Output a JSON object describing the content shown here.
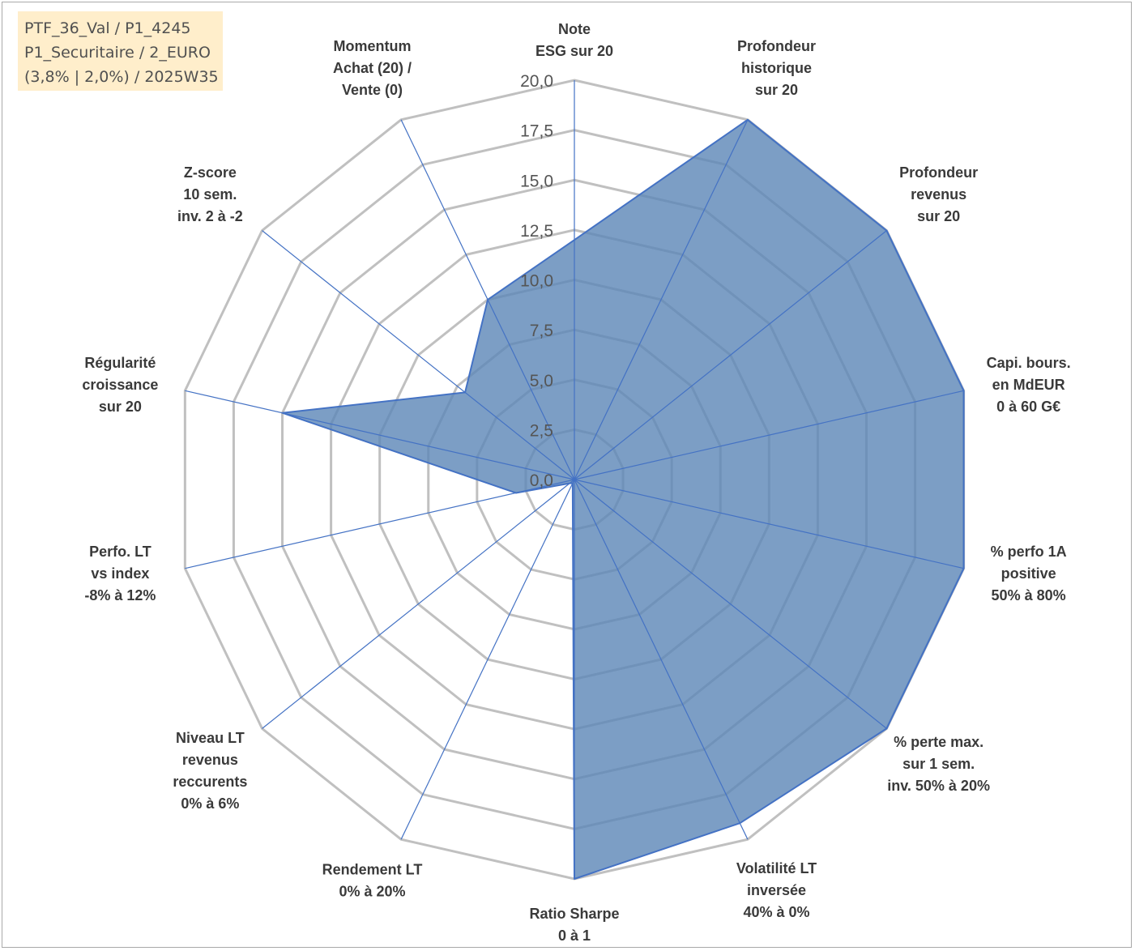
{
  "info_box": {
    "line1": "PTF_36_Val / P1_4245",
    "line2": "P1_Securitaire / 2_EURO",
    "line3": "(3,8% | 2,0%) / 2025W35"
  },
  "colors": {
    "fill": "#5b86b6",
    "series_line": "#4472c4",
    "grid": "#c0c0c0",
    "spoke": "#4472c4"
  },
  "chart_data": {
    "type": "radar",
    "rmin": 0,
    "rmax": 20,
    "ticks": [
      "0,0",
      "2,5",
      "5,0",
      "7,5",
      "10,0",
      "12,5",
      "15,0",
      "17,5",
      "20,0"
    ],
    "axes": [
      [
        "Note",
        "ESG sur 20"
      ],
      [
        "Profondeur",
        "historique",
        "sur 20"
      ],
      [
        "Profondeur",
        "revenus",
        "sur 20"
      ],
      [
        "Capi. bours.",
        "en MdEUR",
        "0 à 60 G€"
      ],
      [
        "% perfo 1A",
        "positive",
        "50% à 80%"
      ],
      [
        "% perte max.",
        "sur 1 sem.",
        "inv. 50% à 20%"
      ],
      [
        "Volatilité LT",
        "inversée",
        "40% à 0%"
      ],
      [
        "Ratio Sharpe",
        "0 à 1"
      ],
      [
        "Rendement LT",
        "0% à 20%"
      ],
      [
        "Niveau LT",
        "revenus",
        "reccurents",
        "0% à 6%"
      ],
      [
        "Perfo. LT",
        "vs index",
        "-8% à 12%"
      ],
      [
        "Régularité",
        "croissance",
        "sur 20"
      ],
      [
        "Z-score",
        "10 sem.",
        "inv. 2 à -2"
      ],
      [
        "Momentum",
        "Achat (20) /",
        "Vente (0)"
      ]
    ],
    "values": [
      12,
      20,
      20,
      20,
      20,
      20,
      19.1,
      20,
      0.2,
      0.3,
      3,
      15,
      7,
      10
    ],
    "grid": true,
    "legend": false
  }
}
